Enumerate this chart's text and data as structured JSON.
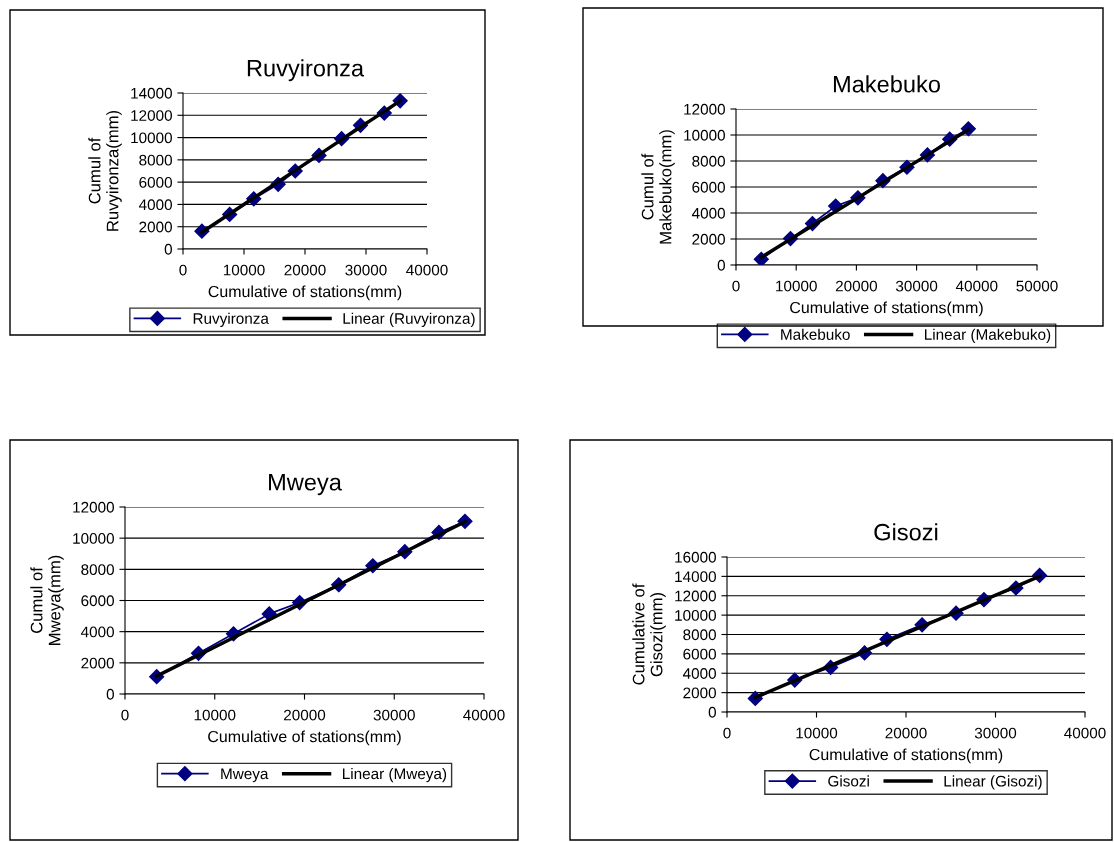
{
  "chart_data": [
    {
      "type": "line",
      "title": "Ruvyironza",
      "xlabel": "Cumulative of stations(mm)",
      "ylabel": "Cumul of\nRuvyironza(mm)",
      "xlim": [
        0,
        40000
      ],
      "xticks": [
        0,
        10000,
        20000,
        30000,
        40000
      ],
      "ylim": [
        0,
        14000
      ],
      "yticks": [
        0,
        2000,
        4000,
        6000,
        8000,
        10000,
        12000,
        14000
      ],
      "grid": "y",
      "legend": "bottom",
      "series": [
        {
          "name": "Ruvyironza",
          "color": "#000080",
          "marker": "diamond",
          "x": [
            3100,
            7650,
            11600,
            15600,
            18400,
            22300,
            26000,
            29100,
            33000,
            35600
          ],
          "values": [
            1600,
            3100,
            4500,
            5800,
            7000,
            8400,
            9900,
            11100,
            12200,
            13300
          ]
        },
        {
          "name": "Linear (Ruvyironza)",
          "color": "#000000",
          "marker": "none",
          "x": [
            3100,
            35600
          ],
          "values": [
            1500,
            13300
          ]
        }
      ]
    },
    {
      "type": "line",
      "title": "Makebuko",
      "xlabel": "Cumulative of stations(mm)",
      "ylabel": "Cumul of\nMakebuko(mm)",
      "xlim": [
        0,
        50000
      ],
      "xticks": [
        0,
        10000,
        20000,
        30000,
        40000,
        50000
      ],
      "ylim": [
        0,
        12000
      ],
      "yticks": [
        0,
        2000,
        4000,
        6000,
        8000,
        10000,
        12000
      ],
      "grid": "y",
      "legend": "bottom",
      "series": [
        {
          "name": "Makebuko",
          "color": "#000080",
          "marker": "diamond",
          "x": [
            4200,
            9050,
            12700,
            16550,
            20250,
            24400,
            28400,
            31800,
            35500,
            38600
          ],
          "values": [
            440,
            2030,
            3190,
            4530,
            5170,
            6490,
            7520,
            8470,
            9680,
            10480
          ]
        },
        {
          "name": "Linear (Makebuko)",
          "color": "#000000",
          "marker": "none",
          "x": [
            4200,
            38600
          ],
          "values": [
            600,
            10400
          ]
        }
      ]
    },
    {
      "type": "line",
      "title": "Mweya",
      "xlabel": "Cumulative of stations(mm)",
      "ylabel": "Cumul of\nMweya(mm)",
      "xlim": [
        0,
        40000
      ],
      "xticks": [
        0,
        10000,
        20000,
        30000,
        40000
      ],
      "ylim": [
        0,
        12000
      ],
      "yticks": [
        0,
        2000,
        4000,
        6000,
        8000,
        10000,
        12000
      ],
      "grid": "y",
      "legend": "bottom",
      "series": [
        {
          "name": "Mweya",
          "color": "#000080",
          "marker": "diamond",
          "x": [
            3530,
            8190,
            12090,
            16070,
            19460,
            23810,
            27610,
            31180,
            34980,
            37880
          ],
          "values": [
            1110,
            2610,
            3860,
            5140,
            5870,
            7010,
            8230,
            9130,
            10370,
            11080
          ]
        },
        {
          "name": "Linear (Mweya)",
          "color": "#000000",
          "marker": "none",
          "x": [
            3530,
            37880
          ],
          "values": [
            1150,
            11050
          ]
        }
      ]
    },
    {
      "type": "line",
      "title": "Gisozi",
      "xlabel": "Cumulative of stations(mm)",
      "ylabel": "Cumulative of\nGisozi(mm)",
      "xlim": [
        0,
        40000
      ],
      "xticks": [
        0,
        10000,
        20000,
        30000,
        40000
      ],
      "ylim": [
        0,
        16000
      ],
      "yticks": [
        0,
        2000,
        4000,
        6000,
        8000,
        10000,
        12000,
        14000,
        16000
      ],
      "grid": "y",
      "legend": "bottom",
      "series": [
        {
          "name": "Gisozi",
          "color": "#000080",
          "marker": "diamond",
          "x": [
            3160,
            7570,
            11580,
            15370,
            17870,
            21800,
            25590,
            28710,
            32280,
            34930
          ],
          "values": [
            1400,
            3300,
            4600,
            6100,
            7500,
            9000,
            10200,
            11600,
            12800,
            14100
          ]
        },
        {
          "name": "Linear (Gisozi)",
          "color": "#000000",
          "marker": "none",
          "x": [
            3160,
            34930
          ],
          "values": [
            1500,
            14000
          ]
        }
      ]
    }
  ]
}
